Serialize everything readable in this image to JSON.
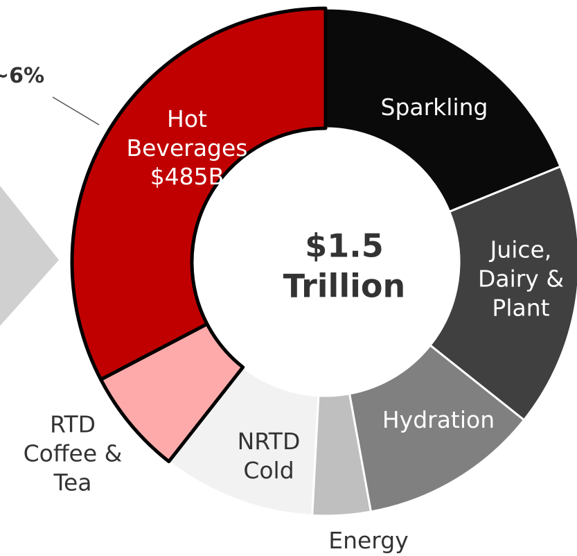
{
  "chart_data": {
    "type": "donut",
    "categories": [
      "Sparkling",
      "Juice, Dairy & Plant",
      "Hydration",
      "Energy",
      "NRTD Cold",
      "RTD Coffee & Tea",
      "Hot Beverages"
    ],
    "values": [
      280,
      250,
      170,
      55,
      145,
      100,
      485
    ],
    "value_labels": [
      null,
      null,
      null,
      null,
      null,
      null,
      "$485B"
    ],
    "colors": [
      "#0a0a0a",
      "#404040",
      "#808080",
      "#bfbfbf",
      "#f2f2f2",
      "#ffaaaa",
      "#c00000"
    ],
    "outlined": [
      false,
      false,
      false,
      false,
      false,
      true,
      true
    ],
    "center_label": "$1.5 Trillion",
    "annotation": "~6%"
  }
}
